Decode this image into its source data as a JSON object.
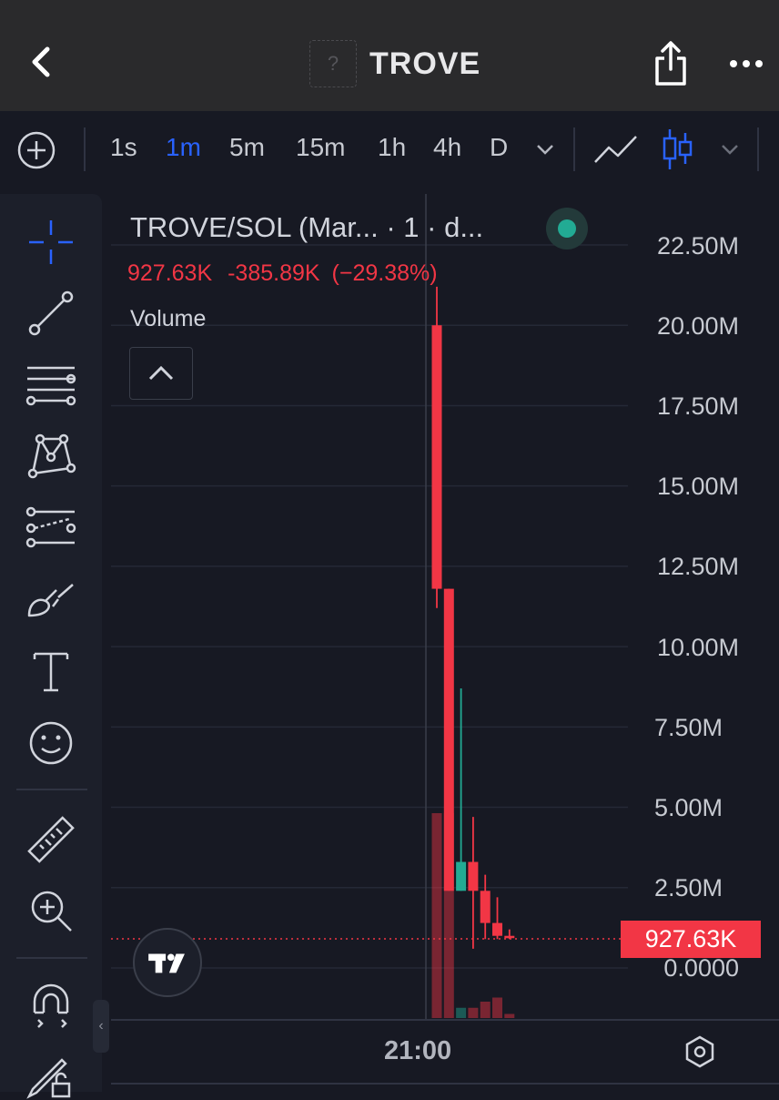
{
  "header": {
    "title": "TROVE",
    "logo_placeholder": "?"
  },
  "toolbar": {
    "intervals": [
      "1s",
      "1m",
      "5m",
      "15m",
      "1h",
      "4h",
      "D"
    ],
    "active_interval": "1m"
  },
  "legend": {
    "title": "TROVE/SOL (Mar... · 1 · d...",
    "last": "927.63K",
    "change": "-385.89K",
    "change_pct": "(−29.38%)",
    "volume_label": "Volume",
    "status_color": "#22ab94"
  },
  "price_axis": {
    "labels": [
      "22.50M",
      "20.00M",
      "17.50M",
      "15.00M",
      "12.50M",
      "10.00M",
      "7.50M",
      "5.00M",
      "2.50M",
      "0.0000"
    ],
    "current_price": "927.63K"
  },
  "time_axis": {
    "label": "21:00"
  },
  "colors": {
    "up": "#22ab94",
    "down": "#f23645",
    "accent": "#2962ff"
  },
  "icons": {
    "left_toolbar": [
      "crosshair-icon",
      "trend-line-icon",
      "fib-retracement-icon",
      "pattern-icon",
      "prediction-icon",
      "brush-icon",
      "text-icon",
      "emoji-icon",
      "ruler-icon",
      "zoom-in-icon",
      "magnet-icon",
      "lock-drawings-icon"
    ]
  },
  "chart_data": {
    "type": "candlestick",
    "ylim": [
      0,
      22500000
    ],
    "candles": [
      {
        "open": 20000000,
        "high": 21200000,
        "low": 11200000,
        "close": 11800000,
        "color": "down"
      },
      {
        "open": 11800000,
        "high": 11800000,
        "low": 2400000,
        "close": 2400000,
        "color": "down"
      },
      {
        "open": 2400000,
        "high": 8700000,
        "low": 2400000,
        "close": 3300000,
        "color": "up"
      },
      {
        "open": 3300000,
        "high": 4700000,
        "low": 600000,
        "close": 2400000,
        "color": "down"
      },
      {
        "open": 2400000,
        "high": 2900000,
        "low": 900000,
        "close": 1400000,
        "color": "down"
      },
      {
        "open": 1400000,
        "high": 2200000,
        "low": 900000,
        "close": 1000000,
        "color": "down"
      },
      {
        "open": 1000000,
        "high": 1200000,
        "low": 900000,
        "close": 927630,
        "color": "down"
      }
    ],
    "volume_relative": [
      1.0,
      1.0,
      0.05,
      0.05,
      0.08,
      0.1,
      0.02
    ]
  }
}
